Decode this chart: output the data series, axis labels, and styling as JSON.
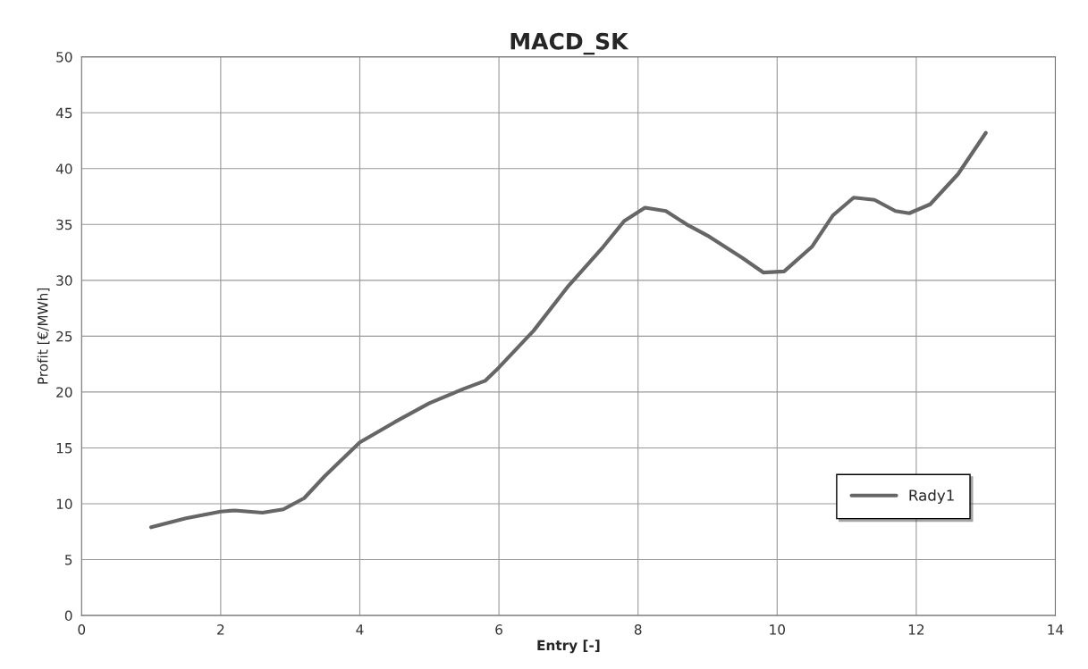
{
  "chart_data": {
    "type": "line",
    "title": "MACD_SK",
    "xlabel": "Entry [-]",
    "ylabel": "Profit [€/MWh]",
    "xlim": [
      0,
      14
    ],
    "xticks": [
      0,
      2,
      4,
      6,
      8,
      10,
      12,
      14
    ],
    "ylim": [
      0,
      50
    ],
    "yticks": [
      0,
      5,
      10,
      15,
      20,
      25,
      30,
      35,
      40,
      45,
      50
    ],
    "grid": true,
    "legend": "bottom right",
    "marker": "none",
    "line_style": "solid",
    "series": [
      {
        "name": "Rady1",
        "color": "#666666",
        "x": [
          1,
          1.5,
          2,
          2.2,
          2.6,
          2.9,
          3.2,
          3.5,
          4,
          4.5,
          5,
          5.5,
          5.8,
          6,
          6.5,
          7,
          7.5,
          7.8,
          8.1,
          8.4,
          8.7,
          9,
          9.5,
          9.8,
          10.1,
          10.5,
          10.8,
          11.1,
          11.4,
          11.7,
          11.9,
          12.2,
          12.6,
          13
        ],
        "values": [
          7.9,
          8.7,
          9.3,
          9.4,
          9.2,
          9.5,
          10.5,
          12.5,
          15.5,
          17.3,
          19,
          20.3,
          21,
          22.2,
          25.5,
          29.5,
          33,
          35.3,
          36.5,
          36.2,
          35,
          34,
          32,
          30.7,
          30.8,
          33,
          35.8,
          37.4,
          37.2,
          36.2,
          36,
          36.8,
          39.5,
          43.2
        ]
      }
    ]
  }
}
